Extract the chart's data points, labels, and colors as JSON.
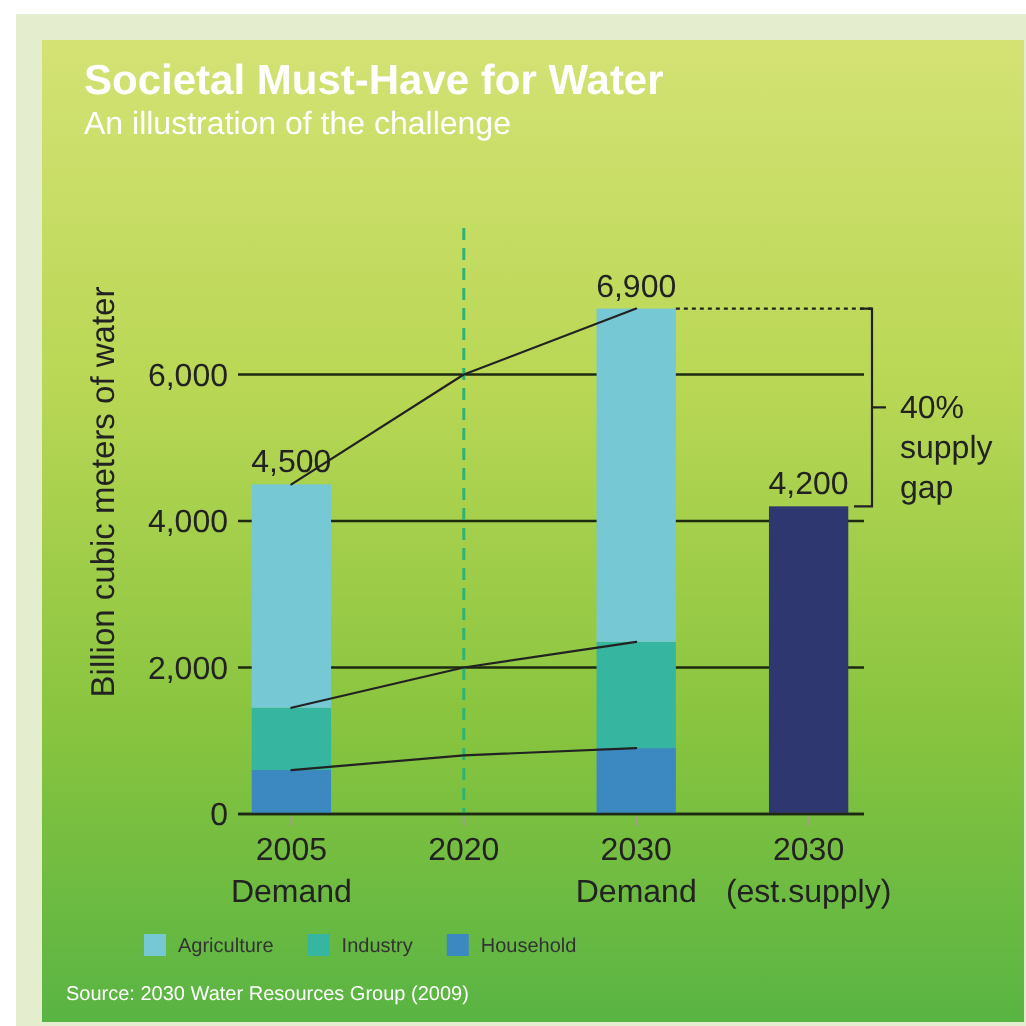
{
  "chart_data": {
    "type": "bar",
    "title": "Societal Must-Have for Water",
    "subtitle": "An illustration of the challenge",
    "ylabel": "Billion cubic meters of water",
    "categories": [
      "2005\nDemand",
      "2020",
      "2030\nDemand",
      "2030\n(est.supply)"
    ],
    "stacked": true,
    "series": [
      {
        "name": "Household",
        "color": "#3c88c0",
        "values": [
          600,
          null,
          900,
          null
        ]
      },
      {
        "name": "Industry",
        "color": "#36b5a0",
        "values": [
          850,
          null,
          1450,
          null
        ]
      },
      {
        "name": "Agriculture",
        "color": "#76c8d4",
        "values": [
          3050,
          null,
          4550,
          null
        ]
      },
      {
        "color": "#2f3770",
        "values": [
          null,
          null,
          null,
          4200
        ]
      },
      {
        "type": "line",
        "color": "#222222",
        "values": [
          4500,
          6000,
          6900,
          null
        ]
      },
      {
        "type": "line",
        "color": "#222222",
        "values": [
          1450,
          2000,
          2350,
          null
        ]
      },
      {
        "type": "line",
        "color": "#222222",
        "values": [
          600,
          800,
          900,
          null
        ]
      }
    ],
    "totals": [
      "4,500",
      null,
      "6,900",
      "4,200"
    ],
    "ylim": [
      0,
      8000
    ],
    "yticks": [
      0,
      {
        "value": 2000,
        "label": "2,000"
      },
      {
        "value": 4000,
        "label": "4,000"
      },
      {
        "value": 6000,
        "label": "6,000"
      }
    ],
    "grid": "y",
    "legend": "bottom",
    "ref_lines": [
      {
        "axis": "x",
        "value": "2020",
        "color": "#2fb36e",
        "line_style": "dashed"
      }
    ],
    "annotations": [
      "40%\nsupply\ngap",
      "Source: 2030 Water Resources Group (2009)"
    ]
  }
}
